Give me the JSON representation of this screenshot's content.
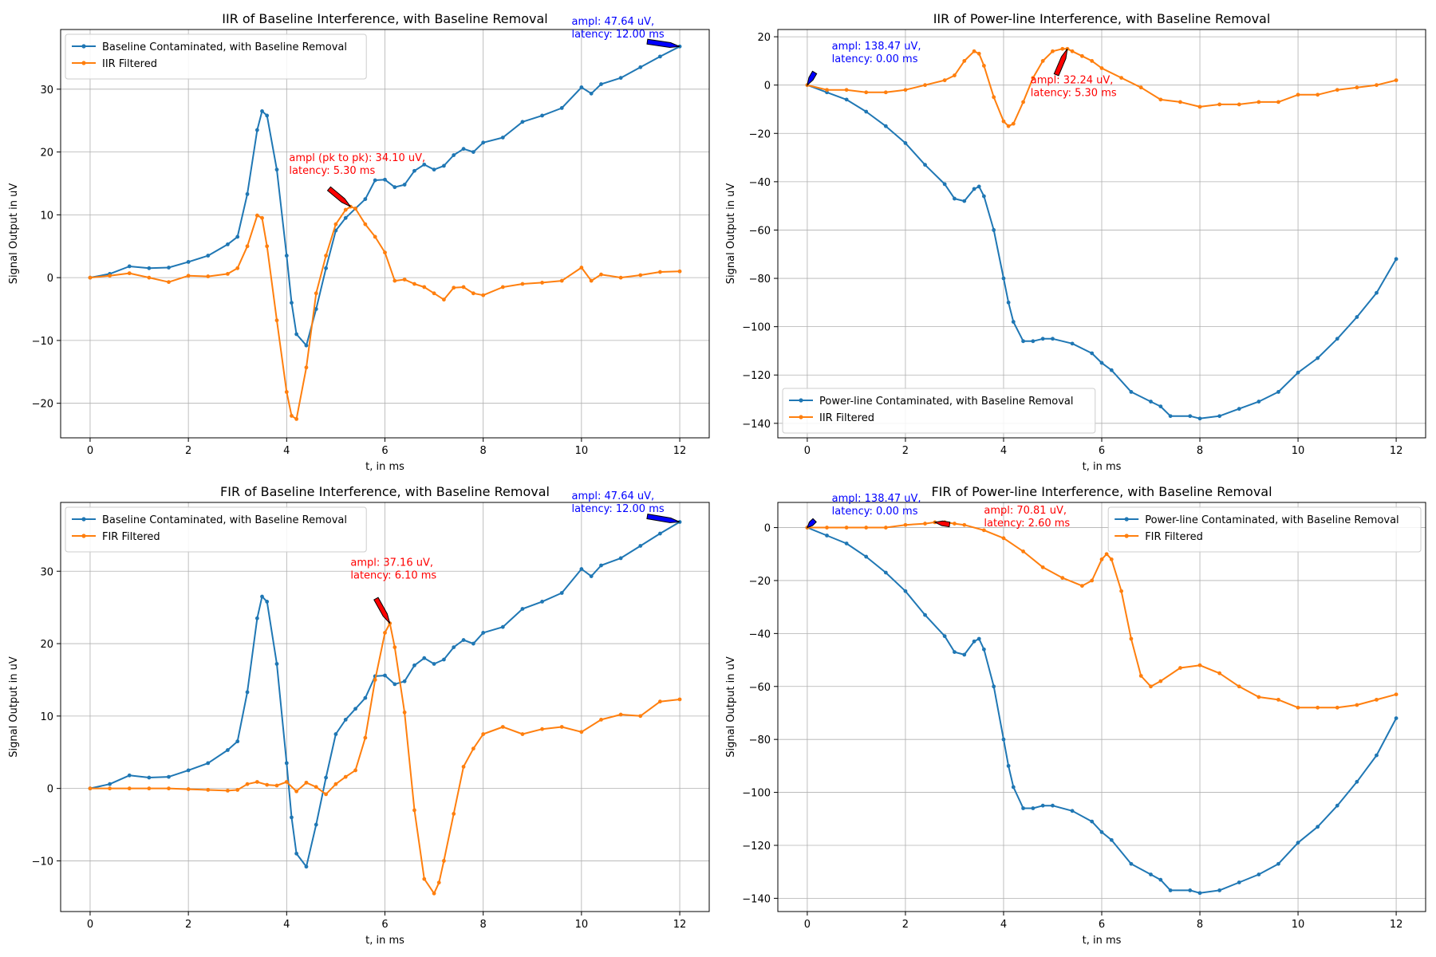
{
  "chart_data": [
    {
      "type": "line",
      "title": "IIR of Baseline Interference, with Baseline Removal",
      "xlabel": "t, in ms",
      "ylabel": "Signal Output in uV",
      "xlim": [
        -0.6,
        12.6
      ],
      "ylim": [
        -25.5,
        39.5
      ],
      "xticks": [
        0,
        2,
        4,
        6,
        8,
        10,
        12
      ],
      "yticks": [
        -20,
        -10,
        0,
        10,
        20,
        30
      ],
      "grid": true,
      "legend_position": "top-left",
      "series": [
        {
          "name": "Baseline Contaminated, with Baseline Removal",
          "color": "#1f77b4",
          "x": [
            0,
            0.4,
            0.8,
            1.2,
            1.6,
            2.0,
            2.4,
            2.8,
            3.0,
            3.2,
            3.4,
            3.5,
            3.6,
            3.8,
            4.0,
            4.1,
            4.2,
            4.4,
            4.6,
            4.8,
            5.0,
            5.2,
            5.4,
            5.6,
            5.8,
            6.0,
            6.2,
            6.4,
            6.6,
            6.8,
            7.0,
            7.2,
            7.4,
            7.6,
            7.8,
            8.0,
            8.4,
            8.8,
            9.2,
            9.6,
            10.0,
            10.2,
            10.4,
            10.8,
            11.2,
            11.6,
            12.0
          ],
          "values": [
            0,
            0.6,
            1.8,
            1.5,
            1.6,
            2.5,
            3.5,
            5.3,
            6.5,
            13.3,
            23.5,
            26.5,
            25.8,
            17.2,
            3.5,
            -4.0,
            -9.0,
            -10.8,
            -5.0,
            1.5,
            7.5,
            9.5,
            11.0,
            12.5,
            15.5,
            15.6,
            14.4,
            14.8,
            17.0,
            18.0,
            17.2,
            17.8,
            19.5,
            20.5,
            20.0,
            21.5,
            22.3,
            24.8,
            25.8,
            27.0,
            30.3,
            29.3,
            30.8,
            31.8,
            33.5,
            35.2,
            36.8
          ]
        },
        {
          "name": "IIR Filtered",
          "color": "#ff7f0e",
          "x": [
            0,
            0.4,
            0.8,
            1.2,
            1.6,
            2.0,
            2.4,
            2.8,
            3.0,
            3.2,
            3.4,
            3.5,
            3.6,
            3.8,
            4.0,
            4.1,
            4.2,
            4.4,
            4.6,
            4.8,
            5.0,
            5.2,
            5.3,
            5.4,
            5.6,
            5.8,
            6.0,
            6.2,
            6.4,
            6.6,
            6.8,
            7.0,
            7.2,
            7.4,
            7.6,
            7.8,
            8.0,
            8.4,
            8.8,
            9.2,
            9.6,
            10.0,
            10.2,
            10.4,
            10.8,
            11.2,
            11.6,
            12.0
          ],
          "values": [
            0,
            0.3,
            0.7,
            0,
            -0.7,
            0.3,
            0.2,
            0.6,
            1.5,
            5.0,
            9.9,
            9.5,
            5.0,
            -6.8,
            -18.2,
            -22.0,
            -22.5,
            -14.3,
            -2.5,
            3.5,
            8.5,
            10.8,
            11.3,
            11.0,
            8.5,
            6.5,
            4.0,
            -0.5,
            -0.3,
            -1.0,
            -1.5,
            -2.5,
            -3.5,
            -1.6,
            -1.5,
            -2.5,
            -2.8,
            -1.5,
            -1.0,
            -0.8,
            -0.5,
            1.6,
            -0.5,
            0.5,
            0,
            0.4,
            0.9,
            1.0
          ]
        }
      ],
      "annotations": [
        {
          "text_lines": [
            "ampl (pk to pk): 34.10 uV,",
            "latency: 5.30 ms"
          ],
          "color": "#ff0000",
          "arrow_color": "#ff0000",
          "x": 5.3,
          "y": 11.3,
          "text_x": 4.05,
          "text_y": 16.5
        },
        {
          "text_lines": [
            "ampl: 47.64 uV,",
            "latency: 12.00 ms"
          ],
          "color": "#0000ff",
          "arrow_color": "#0000ff",
          "x": 12.0,
          "y": 36.8,
          "text_x": 9.8,
          "text_y": 38.2
        }
      ]
    },
    {
      "type": "line",
      "title": "IIR of Power-line Interference, with Baseline Removal",
      "xlabel": "t, in ms",
      "ylabel": "Signal Output in uV",
      "xlim": [
        -0.6,
        12.6
      ],
      "ylim": [
        -146,
        23
      ],
      "xticks": [
        0,
        2,
        4,
        6,
        8,
        10,
        12
      ],
      "yticks": [
        -140,
        -120,
        -100,
        -80,
        -60,
        -40,
        -20,
        0,
        20
      ],
      "grid": true,
      "legend_position": "lower-left",
      "series": [
        {
          "name": "Power-line Contaminated, with Baseline Removal",
          "color": "#1f77b4",
          "x": [
            0,
            0.4,
            0.8,
            1.2,
            1.6,
            2.0,
            2.4,
            2.8,
            3.0,
            3.2,
            3.4,
            3.5,
            3.6,
            3.8,
            4.0,
            4.1,
            4.2,
            4.4,
            4.6,
            4.8,
            5.0,
            5.4,
            5.8,
            6.0,
            6.2,
            6.6,
            7.0,
            7.2,
            7.4,
            7.8,
            8.0,
            8.4,
            8.8,
            9.2,
            9.6,
            10.0,
            10.4,
            10.8,
            11.2,
            11.6,
            12.0
          ],
          "values": [
            0,
            -3,
            -6,
            -11,
            -17,
            -24,
            -33,
            -41,
            -47,
            -48,
            -43,
            -42,
            -46,
            -60,
            -80,
            -90,
            -98,
            -106,
            -106,
            -105,
            -105,
            -107,
            -111,
            -115,
            -118,
            -127,
            -131,
            -133,
            -137,
            -137,
            -138,
            -137,
            -134,
            -131,
            -127,
            -119,
            -113,
            -105,
            -96,
            -86,
            -72
          ]
        },
        {
          "name": "IIR Filtered",
          "color": "#ff7f0e",
          "x": [
            0,
            0.4,
            0.8,
            1.2,
            1.6,
            2.0,
            2.4,
            2.8,
            3.0,
            3.2,
            3.4,
            3.5,
            3.6,
            3.8,
            4.0,
            4.1,
            4.2,
            4.4,
            4.6,
            4.8,
            5.0,
            5.2,
            5.3,
            5.4,
            5.6,
            5.8,
            6.0,
            6.4,
            6.8,
            7.2,
            7.6,
            8.0,
            8.4,
            8.8,
            9.2,
            9.6,
            10.0,
            10.4,
            10.8,
            11.2,
            11.6,
            12.0
          ],
          "values": [
            0,
            -2,
            -2,
            -3,
            -3,
            -2,
            0,
            2,
            4,
            10,
            14,
            13,
            8,
            -5,
            -15,
            -17,
            -16,
            -7,
            3,
            10,
            14,
            15,
            15,
            14,
            12,
            10,
            7,
            3,
            -1,
            -6,
            -7,
            -9,
            -8,
            -8,
            -7,
            -7,
            -4,
            -4,
            -2,
            -1,
            0,
            2
          ]
        }
      ],
      "annotations": [
        {
          "text_lines": [
            "ampl: 138.47 uV,",
            "latency: 0.00 ms"
          ],
          "color": "#0000ff",
          "arrow_color": "#0000ff",
          "x": 0.0,
          "y": 0.0,
          "text_x": 0.5,
          "text_y": 9.5
        },
        {
          "text_lines": [
            "ampl: 32.24 uV,",
            "latency: 5.30 ms"
          ],
          "color": "#ff0000",
          "arrow_color": "#ff0000",
          "x": 5.3,
          "y": 15,
          "text_x": 4.55,
          "text_y": -4.5
        }
      ]
    },
    {
      "type": "line",
      "title": "FIR of Baseline Interference, with Baseline Removal",
      "xlabel": "t, in ms",
      "ylabel": "Signal Output in uV",
      "xlim": [
        -0.6,
        12.6
      ],
      "ylim": [
        -17,
        39.5
      ],
      "xticks": [
        0,
        2,
        4,
        6,
        8,
        10,
        12
      ],
      "yticks": [
        -10,
        0,
        10,
        20,
        30
      ],
      "grid": true,
      "legend_position": "top-left",
      "series": [
        {
          "name": "Baseline Contaminated, with Baseline Removal",
          "color": "#1f77b4",
          "x": [
            0,
            0.4,
            0.8,
            1.2,
            1.6,
            2.0,
            2.4,
            2.8,
            3.0,
            3.2,
            3.4,
            3.5,
            3.6,
            3.8,
            4.0,
            4.1,
            4.2,
            4.4,
            4.6,
            4.8,
            5.0,
            5.2,
            5.4,
            5.6,
            5.8,
            6.0,
            6.2,
            6.4,
            6.6,
            6.8,
            7.0,
            7.2,
            7.4,
            7.6,
            7.8,
            8.0,
            8.4,
            8.8,
            9.2,
            9.6,
            10.0,
            10.2,
            10.4,
            10.8,
            11.2,
            11.6,
            12.0
          ],
          "values": [
            0,
            0.6,
            1.8,
            1.5,
            1.6,
            2.5,
            3.5,
            5.3,
            6.5,
            13.3,
            23.5,
            26.5,
            25.8,
            17.2,
            3.5,
            -4.0,
            -9.0,
            -10.8,
            -5.0,
            1.5,
            7.5,
            9.5,
            11.0,
            12.5,
            15.5,
            15.6,
            14.4,
            14.8,
            17.0,
            18.0,
            17.2,
            17.8,
            19.5,
            20.5,
            20.0,
            21.5,
            22.3,
            24.8,
            25.8,
            27.0,
            30.3,
            29.3,
            30.8,
            31.8,
            33.5,
            35.2,
            36.8
          ]
        },
        {
          "name": "FIR Filtered",
          "color": "#ff7f0e",
          "x": [
            0,
            0.4,
            0.8,
            1.2,
            1.6,
            2.0,
            2.4,
            2.8,
            3.0,
            3.2,
            3.4,
            3.6,
            3.8,
            4.0,
            4.2,
            4.4,
            4.6,
            4.8,
            5.0,
            5.2,
            5.4,
            5.6,
            5.8,
            6.0,
            6.1,
            6.2,
            6.4,
            6.6,
            6.8,
            7.0,
            7.1,
            7.2,
            7.4,
            7.6,
            7.8,
            8.0,
            8.4,
            8.8,
            9.2,
            9.6,
            10.0,
            10.4,
            10.8,
            11.2,
            11.6,
            12.0
          ],
          "values": [
            0,
            0,
            0,
            0,
            0,
            -0.1,
            -0.2,
            -0.3,
            -0.2,
            0.6,
            0.9,
            0.5,
            0.4,
            0.9,
            -0.4,
            0.8,
            0.2,
            -0.8,
            0.6,
            1.6,
            2.5,
            7.0,
            15.0,
            21.5,
            22.8,
            19.5,
            10.5,
            -3.0,
            -12.5,
            -14.5,
            -13.0,
            -10.0,
            -3.5,
            3.0,
            5.5,
            7.5,
            8.5,
            7.5,
            8.2,
            8.5,
            7.8,
            9.5,
            10.2,
            10.0,
            12.0,
            12.3
          ]
        }
      ],
      "annotations": [
        {
          "text_lines": [
            "ampl: 37.16 uV,",
            "latency: 6.10 ms"
          ],
          "color": "#ff0000",
          "arrow_color": "#ff0000",
          "x": 6.1,
          "y": 22.8,
          "text_x": 5.3,
          "text_y": 29.0
        },
        {
          "text_lines": [
            "ampl: 47.64 uV,",
            "latency: 12.00 ms"
          ],
          "color": "#0000ff",
          "arrow_color": "#0000ff",
          "x": 12.0,
          "y": 36.8,
          "text_x": 9.8,
          "text_y": 38.2
        }
      ]
    },
    {
      "type": "line",
      "title": "FIR of Power-line Interference, with Baseline Removal",
      "xlabel": "t, in ms",
      "ylabel": "Signal Output in uV",
      "xlim": [
        -0.6,
        12.6
      ],
      "ylim": [
        -145,
        9.5
      ],
      "xticks": [
        0,
        2,
        4,
        6,
        8,
        10,
        12
      ],
      "yticks": [
        -140,
        -120,
        -100,
        -80,
        -60,
        -40,
        -20,
        0
      ],
      "grid": true,
      "legend_position": "top-right",
      "series": [
        {
          "name": "Power-line Contaminated, with Baseline Removal",
          "color": "#1f77b4",
          "x": [
            0,
            0.4,
            0.8,
            1.2,
            1.6,
            2.0,
            2.4,
            2.8,
            3.0,
            3.2,
            3.4,
            3.5,
            3.6,
            3.8,
            4.0,
            4.1,
            4.2,
            4.4,
            4.6,
            4.8,
            5.0,
            5.4,
            5.8,
            6.0,
            6.2,
            6.6,
            7.0,
            7.2,
            7.4,
            7.8,
            8.0,
            8.4,
            8.8,
            9.2,
            9.6,
            10.0,
            10.4,
            10.8,
            11.2,
            11.6,
            12.0
          ],
          "values": [
            0,
            -3,
            -6,
            -11,
            -17,
            -24,
            -33,
            -41,
            -47,
            -48,
            -43,
            -42,
            -46,
            -60,
            -80,
            -90,
            -98,
            -106,
            -106,
            -105,
            -105,
            -107,
            -111,
            -115,
            -118,
            -127,
            -131,
            -133,
            -137,
            -137,
            -138,
            -137,
            -134,
            -131,
            -127,
            -119,
            -113,
            -105,
            -96,
            -86,
            -72
          ]
        },
        {
          "name": "FIR Filtered",
          "color": "#ff7f0e",
          "x": [
            0,
            0.4,
            0.8,
            1.2,
            1.6,
            2.0,
            2.4,
            2.6,
            2.8,
            3.0,
            3.2,
            3.6,
            4.0,
            4.4,
            4.8,
            5.2,
            5.6,
            5.8,
            6.0,
            6.1,
            6.2,
            6.4,
            6.6,
            6.8,
            7.0,
            7.2,
            7.6,
            8.0,
            8.4,
            8.8,
            9.2,
            9.6,
            10.0,
            10.4,
            10.8,
            11.2,
            11.6,
            12.0
          ],
          "values": [
            0,
            0,
            0,
            0,
            0,
            1,
            1.5,
            2,
            2,
            1.5,
            1,
            -1,
            -4,
            -9,
            -15,
            -19,
            -22,
            -20,
            -12,
            -10,
            -12,
            -24,
            -42,
            -56,
            -60,
            -58,
            -53,
            -52,
            -55,
            -60,
            -64,
            -65,
            -68,
            -68,
            -68,
            -67,
            -65,
            -63
          ]
        }
      ],
      "annotations": [
        {
          "text_lines": [
            "ampl: 138.47 uV,",
            "latency: 0.00 ms"
          ],
          "color": "#0000ff",
          "arrow_color": "#0000ff",
          "x": 0.0,
          "y": 0.0,
          "text_x": 0.5,
          "text_y": 5.0
        },
        {
          "text_lines": [
            "ampl: 70.81 uV,",
            "latency: 2.60 ms"
          ],
          "color": "#ff0000",
          "arrow_color": "#ff0000",
          "x": 2.6,
          "y": 2.0,
          "text_x": 3.6,
          "text_y": 0.5
        }
      ]
    }
  ]
}
